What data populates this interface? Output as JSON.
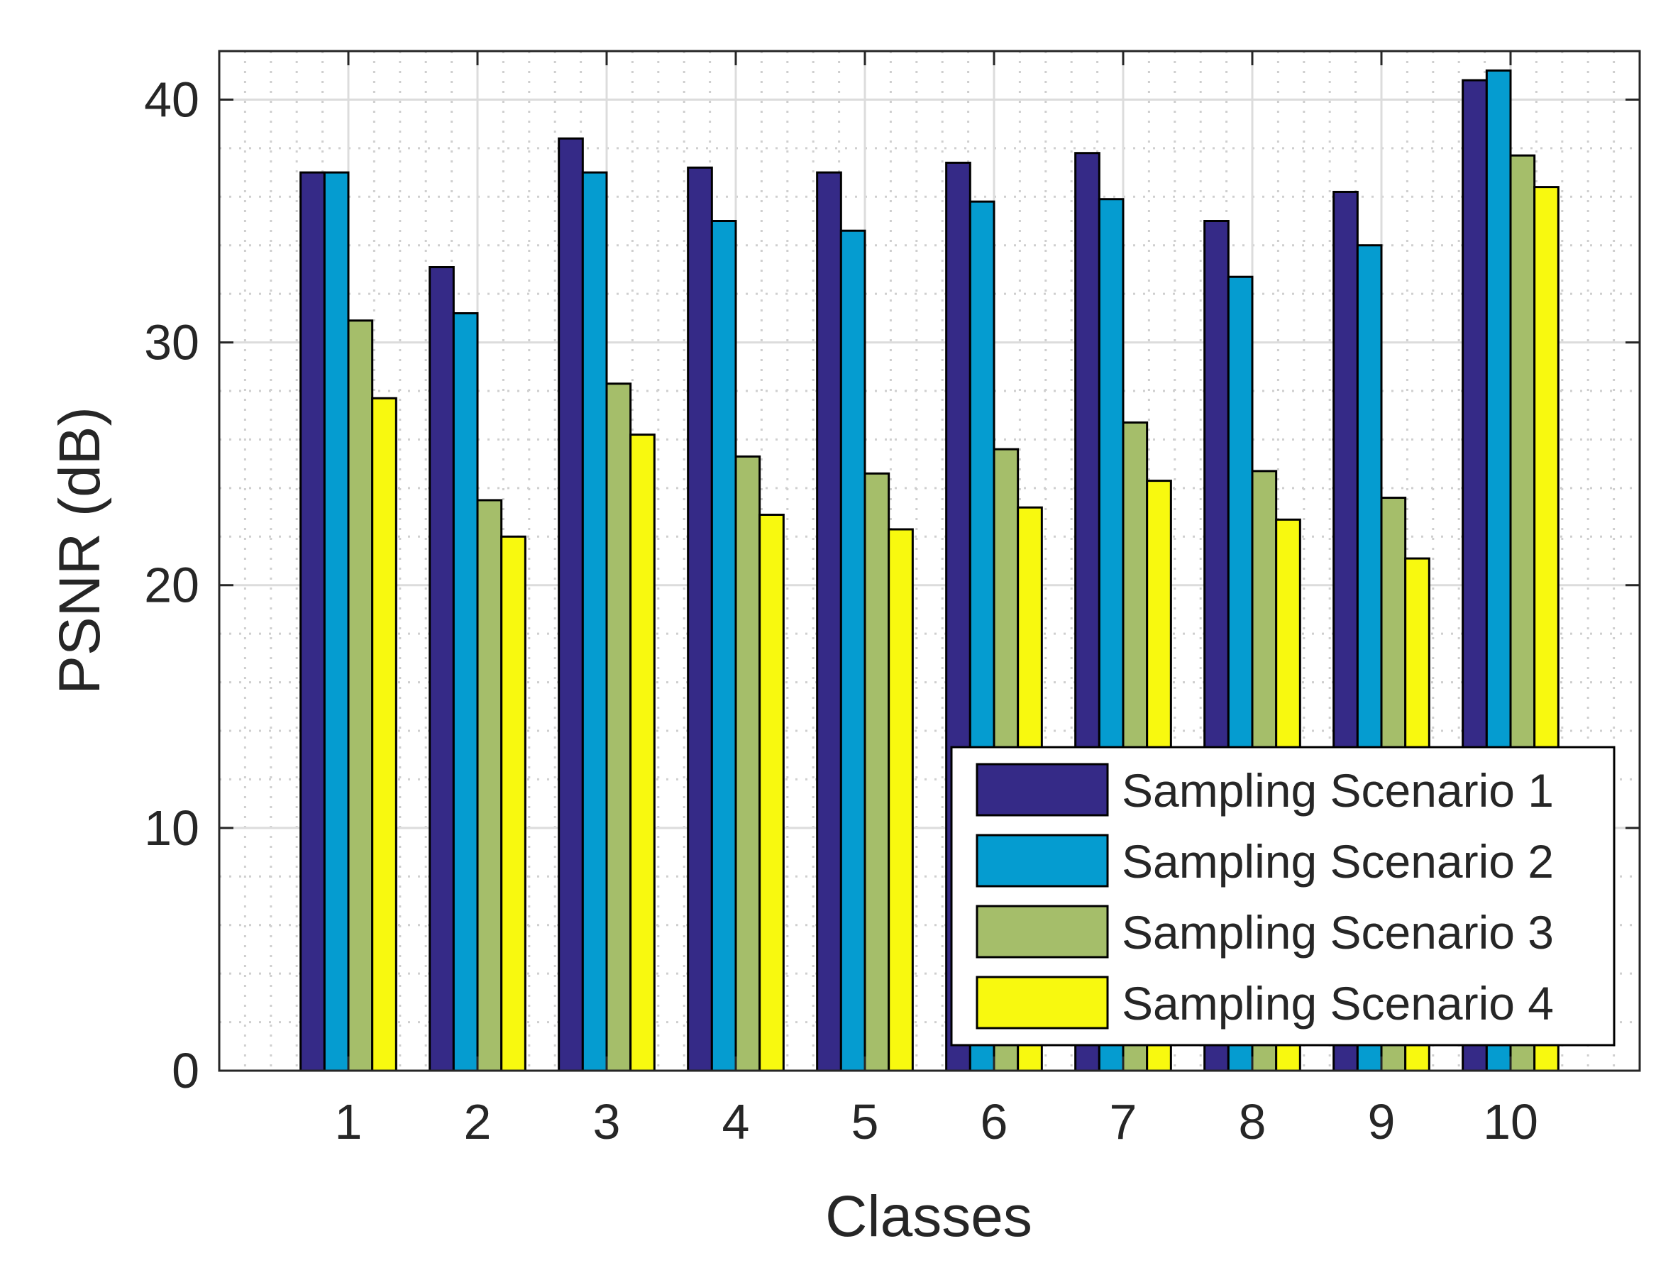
{
  "chart_data": {
    "type": "bar",
    "title": "",
    "xlabel": "Classes",
    "ylabel": "PSNR (dB)",
    "categories": [
      "1",
      "2",
      "3",
      "4",
      "5",
      "6",
      "7",
      "8",
      "9",
      "10"
    ],
    "ylim": [
      0,
      42
    ],
    "yticks": [
      0,
      10,
      20,
      30,
      40
    ],
    "yticks_labels": [
      "0",
      "10",
      "20",
      "30",
      "40"
    ],
    "grid": true,
    "minor_grid": true,
    "legend_position": "lower-right",
    "series": [
      {
        "name": "Sampling Scenario 1",
        "color": "#352A87",
        "values": [
          37.0,
          33.1,
          38.4,
          37.2,
          37.0,
          37.4,
          37.8,
          35.0,
          36.2,
          40.8
        ]
      },
      {
        "name": "Sampling Scenario 2",
        "color": "#059CD0",
        "values": [
          37.0,
          31.2,
          37.0,
          35.0,
          34.6,
          35.8,
          35.9,
          32.7,
          34.0,
          41.2
        ]
      },
      {
        "name": "Sampling Scenario 3",
        "color": "#A5BE6A",
        "values": [
          30.9,
          23.5,
          28.3,
          25.3,
          24.6,
          25.6,
          26.7,
          24.7,
          23.6,
          37.7
        ]
      },
      {
        "name": "Sampling Scenario 4",
        "color": "#F8F90F",
        "values": [
          27.7,
          22.0,
          26.2,
          22.9,
          22.3,
          23.2,
          24.3,
          22.7,
          21.1,
          36.4
        ]
      }
    ]
  }
}
